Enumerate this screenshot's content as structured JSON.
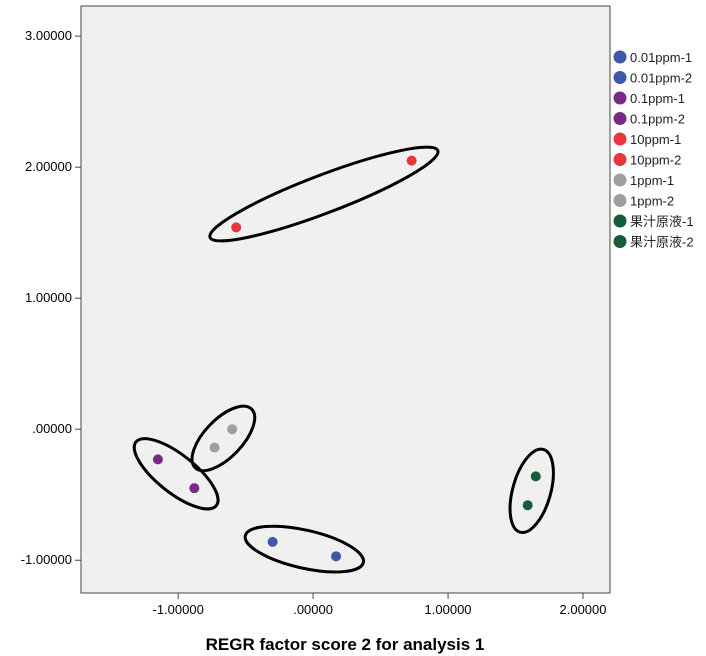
{
  "chart_data": {
    "type": "scatter",
    "xlabel": "REGR factor score   2 for analysis 1",
    "ylabel": "",
    "xlim": [
      -1.72,
      2.2
    ],
    "ylim": [
      -1.25,
      3.23
    ],
    "x_ticks": [
      -1.0,
      0.0,
      1.0,
      2.0
    ],
    "x_tick_labels": [
      "-1.00000",
      ".00000",
      "1.00000",
      "2.00000"
    ],
    "y_ticks": [
      -1.0,
      0.0,
      1.0,
      2.0,
      3.0
    ],
    "y_tick_labels": [
      "-1.00000",
      ".00000",
      "1.00000",
      "2.00000",
      "3.00000"
    ],
    "plot_background": "#f0f0f0",
    "grid": false,
    "legend_position": "right",
    "series": [
      {
        "name": "0.01ppm-1",
        "color": "#3f57a8",
        "points": [
          [
            -0.3,
            -0.86
          ]
        ]
      },
      {
        "name": "0.01ppm-2",
        "color": "#3f57a8",
        "points": [
          [
            0.17,
            -0.97
          ]
        ]
      },
      {
        "name": "0.1ppm-1",
        "color": "#7a2a86",
        "points": [
          [
            -1.15,
            -0.23
          ]
        ]
      },
      {
        "name": "0.1ppm-2",
        "color": "#7a2a86",
        "points": [
          [
            -0.88,
            -0.45
          ]
        ]
      },
      {
        "name": "10ppm-1",
        "color": "#e8363b",
        "points": [
          [
            -0.57,
            1.54
          ]
        ]
      },
      {
        "name": "10ppm-2",
        "color": "#e8363b",
        "points": [
          [
            0.73,
            2.05
          ]
        ]
      },
      {
        "name": "1ppm-1",
        "color": "#9e9e9e",
        "points": [
          [
            -0.6,
            0.0
          ]
        ]
      },
      {
        "name": "1ppm-2",
        "color": "#9e9e9e",
        "points": [
          [
            -0.73,
            -0.14
          ]
        ]
      },
      {
        "name": "果汁原液-1",
        "color": "#165c3a",
        "points": [
          [
            1.65,
            -0.36
          ]
        ]
      },
      {
        "name": "果汁原液-2",
        "color": "#165c3a",
        "points": [
          [
            1.59,
            -0.58
          ]
        ]
      }
    ],
    "annotations": [
      {
        "type": "ellipse",
        "encloses": [
          "10ppm-1",
          "10ppm-2"
        ]
      },
      {
        "type": "ellipse",
        "encloses": [
          "1ppm-1",
          "1ppm-2"
        ]
      },
      {
        "type": "ellipse",
        "encloses": [
          "0.1ppm-1",
          "0.1ppm-2"
        ]
      },
      {
        "type": "ellipse",
        "encloses": [
          "0.01ppm-1",
          "0.01ppm-2"
        ]
      },
      {
        "type": "ellipse",
        "encloses": [
          "果汁原液-1",
          "果汁原液-2"
        ]
      }
    ]
  }
}
